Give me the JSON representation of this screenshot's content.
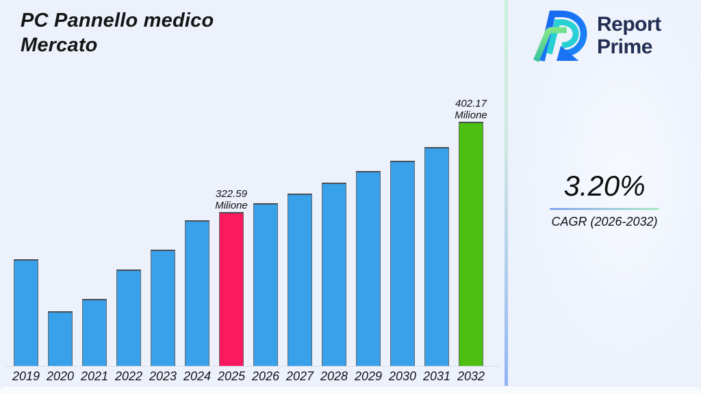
{
  "header": {
    "title_line1": "PC Pannello medico",
    "title_line2": "Mercato"
  },
  "brand": {
    "logo_icon": "report-prime-logo-icon",
    "name_line1": "Report",
    "name_line2": "Prime",
    "name_color": "#222d52"
  },
  "kpi": {
    "value": "3.20%",
    "label": "CAGR (2026-2032)"
  },
  "chart_data": {
    "type": "bar",
    "title": "PC Pannello medico Mercato",
    "xlabel": "",
    "ylabel": "",
    "unit": "Milione",
    "grid": false,
    "legend_position": "none",
    "ylim": [
      186,
      420
    ],
    "colors": {
      "default": "#38a1e9",
      "highlight_current": "#fb1a60",
      "highlight_forecast": "#4dbf12"
    },
    "categories": [
      "2019",
      "2020",
      "2021",
      "2022",
      "2023",
      "2024",
      "2025",
      "2026",
      "2027",
      "2028",
      "2029",
      "2030",
      "2031",
      "2032"
    ],
    "values": [
      280.8,
      234.8,
      245.7,
      271.4,
      289.3,
      315.3,
      322.59,
      330.1,
      338.9,
      348.6,
      358.6,
      367.7,
      380.1,
      402.17
    ],
    "annotations": [
      {
        "index": 6,
        "category": "2025",
        "lines": [
          "322.59",
          "Milione"
        ],
        "color_key": "highlight_current"
      },
      {
        "index": 13,
        "category": "2032",
        "lines": [
          "402.17",
          "Milione"
        ],
        "color_key": "highlight_forecast"
      }
    ]
  }
}
